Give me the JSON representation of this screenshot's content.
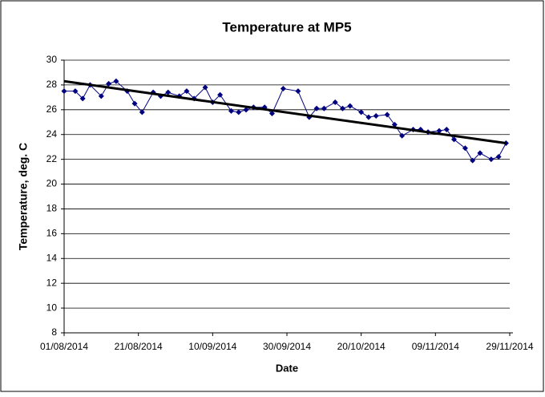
{
  "chart_data": {
    "type": "line",
    "title": "Temperature at MP5",
    "x_label": "Date",
    "y_label": "Temperature, deg. C",
    "x": [
      "2014-08-01",
      "2014-08-04",
      "2014-08-06",
      "2014-08-08",
      "2014-08-11",
      "2014-08-13",
      "2014-08-15",
      "2014-08-18",
      "2014-08-20",
      "2014-08-22",
      "2014-08-25",
      "2014-08-27",
      "2014-08-29",
      "2014-09-01",
      "2014-09-03",
      "2014-09-05",
      "2014-09-08",
      "2014-09-10",
      "2014-09-12",
      "2014-09-15",
      "2014-09-17",
      "2014-09-19",
      "2014-09-21",
      "2014-09-24",
      "2014-09-26",
      "2014-09-29",
      "2014-10-03",
      "2014-10-06",
      "2014-10-08",
      "2014-10-10",
      "2014-10-13",
      "2014-10-15",
      "2014-10-17",
      "2014-10-20",
      "2014-10-22",
      "2014-10-24",
      "2014-10-27",
      "2014-10-29",
      "2014-10-31",
      "2014-11-03",
      "2014-11-05",
      "2014-11-07",
      "2014-11-10",
      "2014-11-12",
      "2014-11-14",
      "2014-11-17",
      "2014-11-19",
      "2014-11-21",
      "2014-11-24",
      "2014-11-26",
      "2014-11-28"
    ],
    "series": [
      {
        "color": "#000080",
        "values": [
          27.5,
          27.5,
          26.9,
          28.0,
          27.1,
          28.1,
          28.3,
          27.5,
          26.5,
          25.8,
          27.4,
          27.1,
          27.4,
          27.1,
          27.5,
          26.9,
          27.8,
          26.6,
          27.2,
          25.9,
          25.8,
          26.0,
          26.2,
          26.2,
          25.7,
          27.7,
          27.5,
          25.4,
          26.1,
          26.1,
          26.6,
          26.1,
          26.3,
          25.8,
          25.4,
          25.5,
          25.6,
          24.8,
          23.9,
          24.4,
          24.4,
          24.2,
          24.3,
          24.4,
          23.6,
          22.9,
          21.9,
          22.5,
          22.0,
          22.2,
          23.3
        ]
      }
    ],
    "trendline": {
      "color": "#000000",
      "x": [
        "2014-08-01",
        "2014-11-28"
      ],
      "values": [
        28.3,
        23.3
      ]
    },
    "xlim": [
      "2014-08-01",
      "2014-11-29"
    ],
    "xticks": [
      {
        "value": "2014-08-01",
        "label": "01/08/2014"
      },
      {
        "value": "2014-08-21",
        "label": "21/08/2014"
      },
      {
        "value": "2014-09-10",
        "label": "10/09/2014"
      },
      {
        "value": "2014-09-30",
        "label": "30/09/2014"
      },
      {
        "value": "2014-10-20",
        "label": "20/10/2014"
      },
      {
        "value": "2014-11-09",
        "label": "09/11/2014"
      },
      {
        "value": "2014-11-29",
        "label": "29/11/2014"
      }
    ],
    "ylim": [
      8,
      30
    ],
    "yticks": [
      8,
      10,
      12,
      14,
      16,
      18,
      20,
      22,
      24,
      26,
      28,
      30
    ],
    "grid": true
  }
}
